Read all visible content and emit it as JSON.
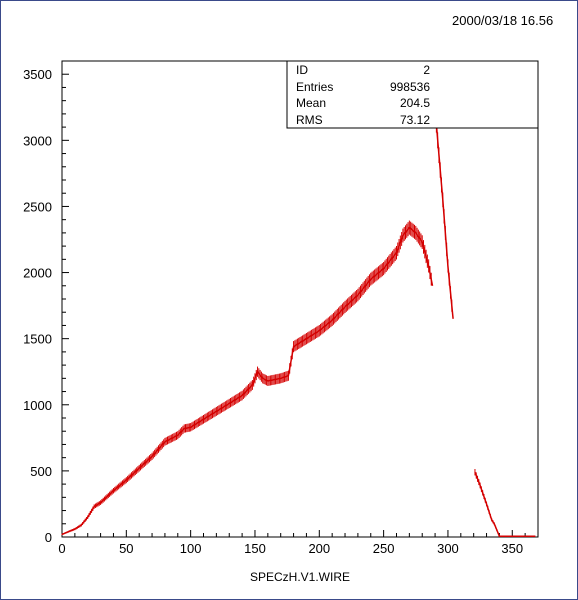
{
  "header": {
    "date": "2000/03/18  16.56"
  },
  "stats_box": {
    "rows": [
      {
        "label": "ID",
        "value": "2"
      },
      {
        "label": "Entries",
        "value": "998536"
      },
      {
        "label": "Mean",
        "value": "204.5"
      },
      {
        "label": "RMS",
        "value": "73.12"
      }
    ]
  },
  "colors": {
    "data": "#d40000",
    "axis": "#000000",
    "frame": "#3a4a8a"
  },
  "chart_data": {
    "type": "line",
    "title": "",
    "xlabel": "SPECzH.V1.WIRE",
    "ylabel": "",
    "xlim": [
      0,
      370
    ],
    "ylim": [
      0,
      3600
    ],
    "x_ticks": [
      0,
      50,
      100,
      150,
      200,
      250,
      300,
      350
    ],
    "y_ticks": [
      0,
      500,
      1000,
      1500,
      2000,
      2500,
      3000,
      3500
    ],
    "series": [
      {
        "values": [
          [
            0,
            20
          ],
          [
            5,
            40
          ],
          [
            10,
            60
          ],
          [
            15,
            90
          ],
          [
            20,
            150
          ],
          [
            25,
            230
          ],
          [
            30,
            260
          ],
          [
            40,
            350
          ],
          [
            50,
            430
          ],
          [
            60,
            520
          ],
          [
            70,
            610
          ],
          [
            80,
            720
          ],
          [
            90,
            770
          ],
          [
            95,
            820
          ],
          [
            100,
            830
          ],
          [
            110,
            890
          ],
          [
            120,
            950
          ],
          [
            130,
            1010
          ],
          [
            140,
            1070
          ],
          [
            148,
            1150
          ],
          [
            152,
            1250
          ],
          [
            156,
            1200
          ],
          [
            160,
            1180
          ],
          [
            170,
            1200
          ],
          [
            176,
            1220
          ],
          [
            180,
            1440
          ],
          [
            190,
            1500
          ],
          [
            200,
            1560
          ],
          [
            210,
            1640
          ],
          [
            220,
            1740
          ],
          [
            230,
            1830
          ],
          [
            240,
            1950
          ],
          [
            250,
            2030
          ],
          [
            260,
            2150
          ],
          [
            265,
            2280
          ],
          [
            270,
            2340
          ],
          [
            275,
            2300
          ],
          [
            280,
            2230
          ],
          [
            285,
            2050
          ],
          [
            288,
            1900
          ],
          [
            290,
            3240
          ],
          [
            292,
            3000
          ],
          [
            296,
            2550
          ],
          [
            300,
            2050
          ],
          [
            304,
            1650
          ],
          [
            321,
            490
          ],
          [
            325,
            390
          ],
          [
            330,
            250
          ],
          [
            334,
            130
          ],
          [
            336,
            100
          ],
          [
            340,
            5
          ],
          [
            350,
            5
          ],
          [
            360,
            5
          ],
          [
            368,
            5
          ]
        ]
      }
    ]
  }
}
